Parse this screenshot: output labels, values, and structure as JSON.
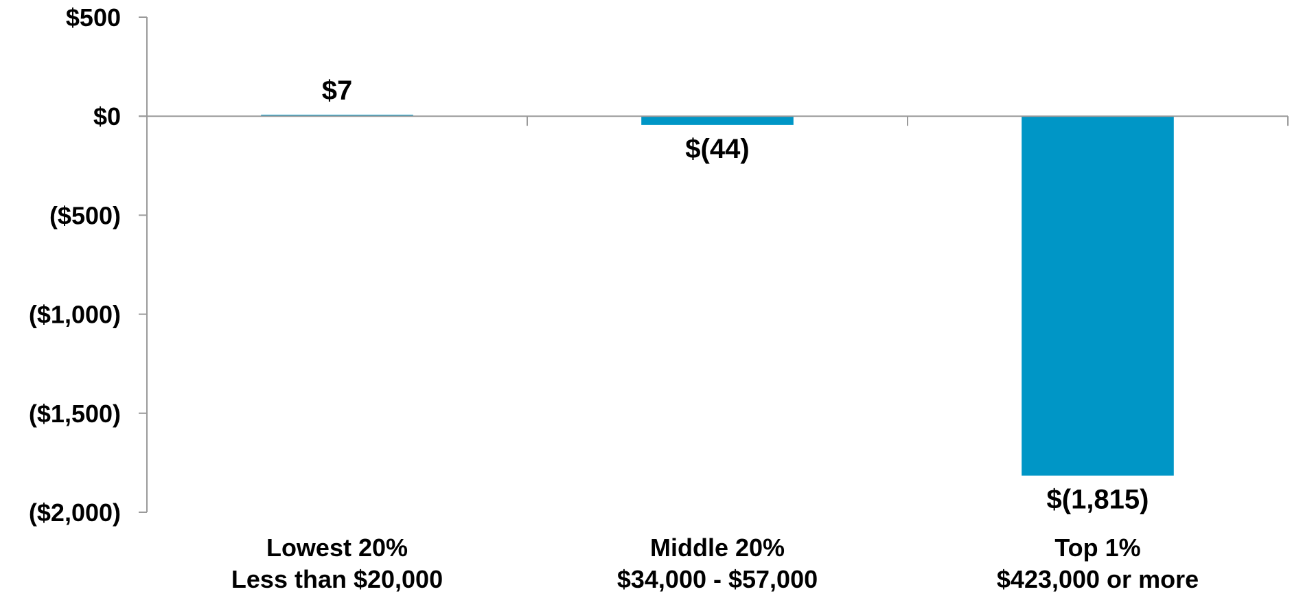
{
  "chart_data": {
    "type": "bar",
    "title": "",
    "xlabel": "",
    "ylabel": "",
    "ylim": [
      -2000,
      500
    ],
    "yticks": [
      500,
      0,
      -500,
      -1000,
      -1500,
      -2000
    ],
    "ytick_labels": [
      "$500",
      "$0",
      "($500)",
      "($1,000)",
      "($1,500)",
      "($2,000)"
    ],
    "grid": false,
    "legend": "none",
    "bar_color": "#0096C6",
    "categories": [
      {
        "line1": "Lowest 20%",
        "line2": "Less than $20,000"
      },
      {
        "line1": "Middle 20%",
        "line2": "$34,000 - $57,000"
      },
      {
        "line1": "Top 1%",
        "line2": "$423,000 or more"
      }
    ],
    "values": [
      7,
      -44,
      -1815
    ],
    "value_labels": [
      "$7",
      "$(44)",
      "$(1,815)"
    ]
  }
}
